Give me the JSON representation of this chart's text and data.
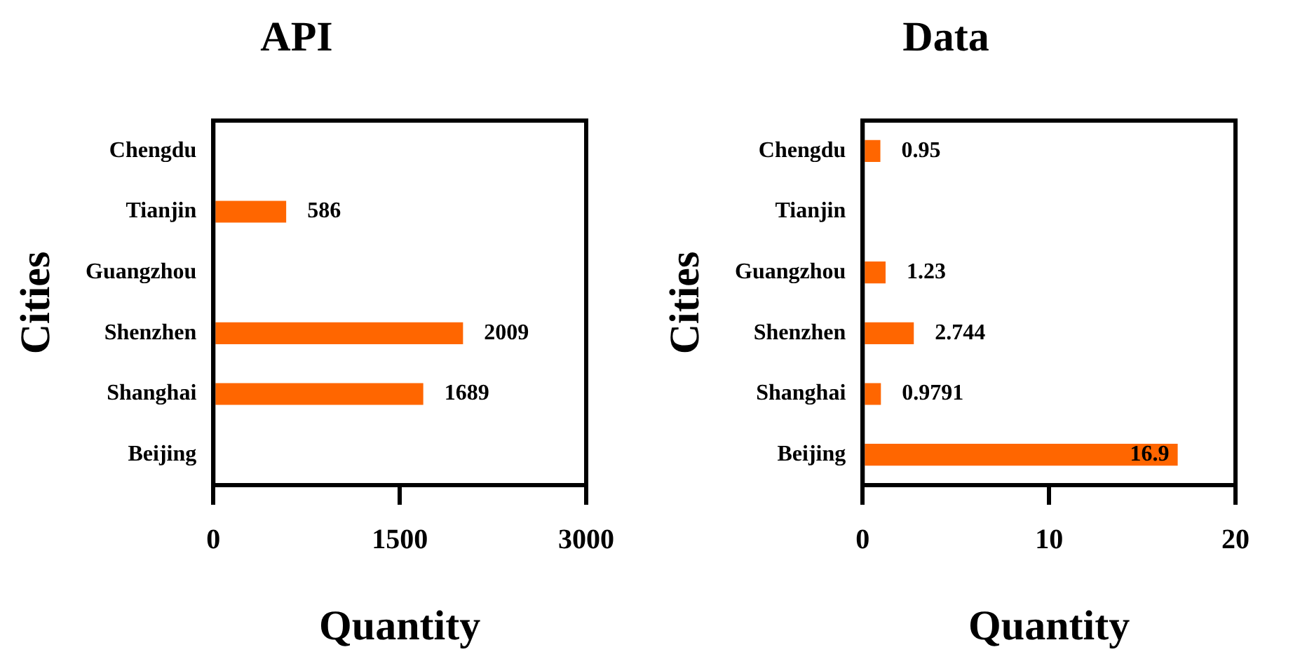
{
  "chart_data": [
    {
      "type": "bar",
      "orientation": "horizontal",
      "title": "API",
      "xlabel": "Quantity",
      "ylabel": "Cities",
      "categories": [
        "Chengdu",
        "Tianjin",
        "Guangzhou",
        "Shenzhen",
        "Shanghai",
        "Beijing"
      ],
      "values": [
        null,
        586,
        null,
        2009,
        1689,
        null
      ],
      "color": "#ff6600",
      "xlim": [
        0,
        3000
      ],
      "xticks": [
        0,
        1500,
        3000
      ],
      "grid": false,
      "legend": false,
      "data_labels": true
    },
    {
      "type": "bar",
      "orientation": "horizontal",
      "title": "Data",
      "xlabel": "Quantity",
      "ylabel": "Cities",
      "categories": [
        "Chengdu",
        "Tianjin",
        "Guangzhou",
        "Shenzhen",
        "Shanghai",
        "Beijing"
      ],
      "values": [
        0.95,
        null,
        1.23,
        2.744,
        0.9791,
        16.9
      ],
      "color": "#ff6600",
      "xlim": [
        0,
        20
      ],
      "xticks": [
        0,
        10,
        20
      ],
      "grid": false,
      "legend": false,
      "data_labels": true
    }
  ]
}
